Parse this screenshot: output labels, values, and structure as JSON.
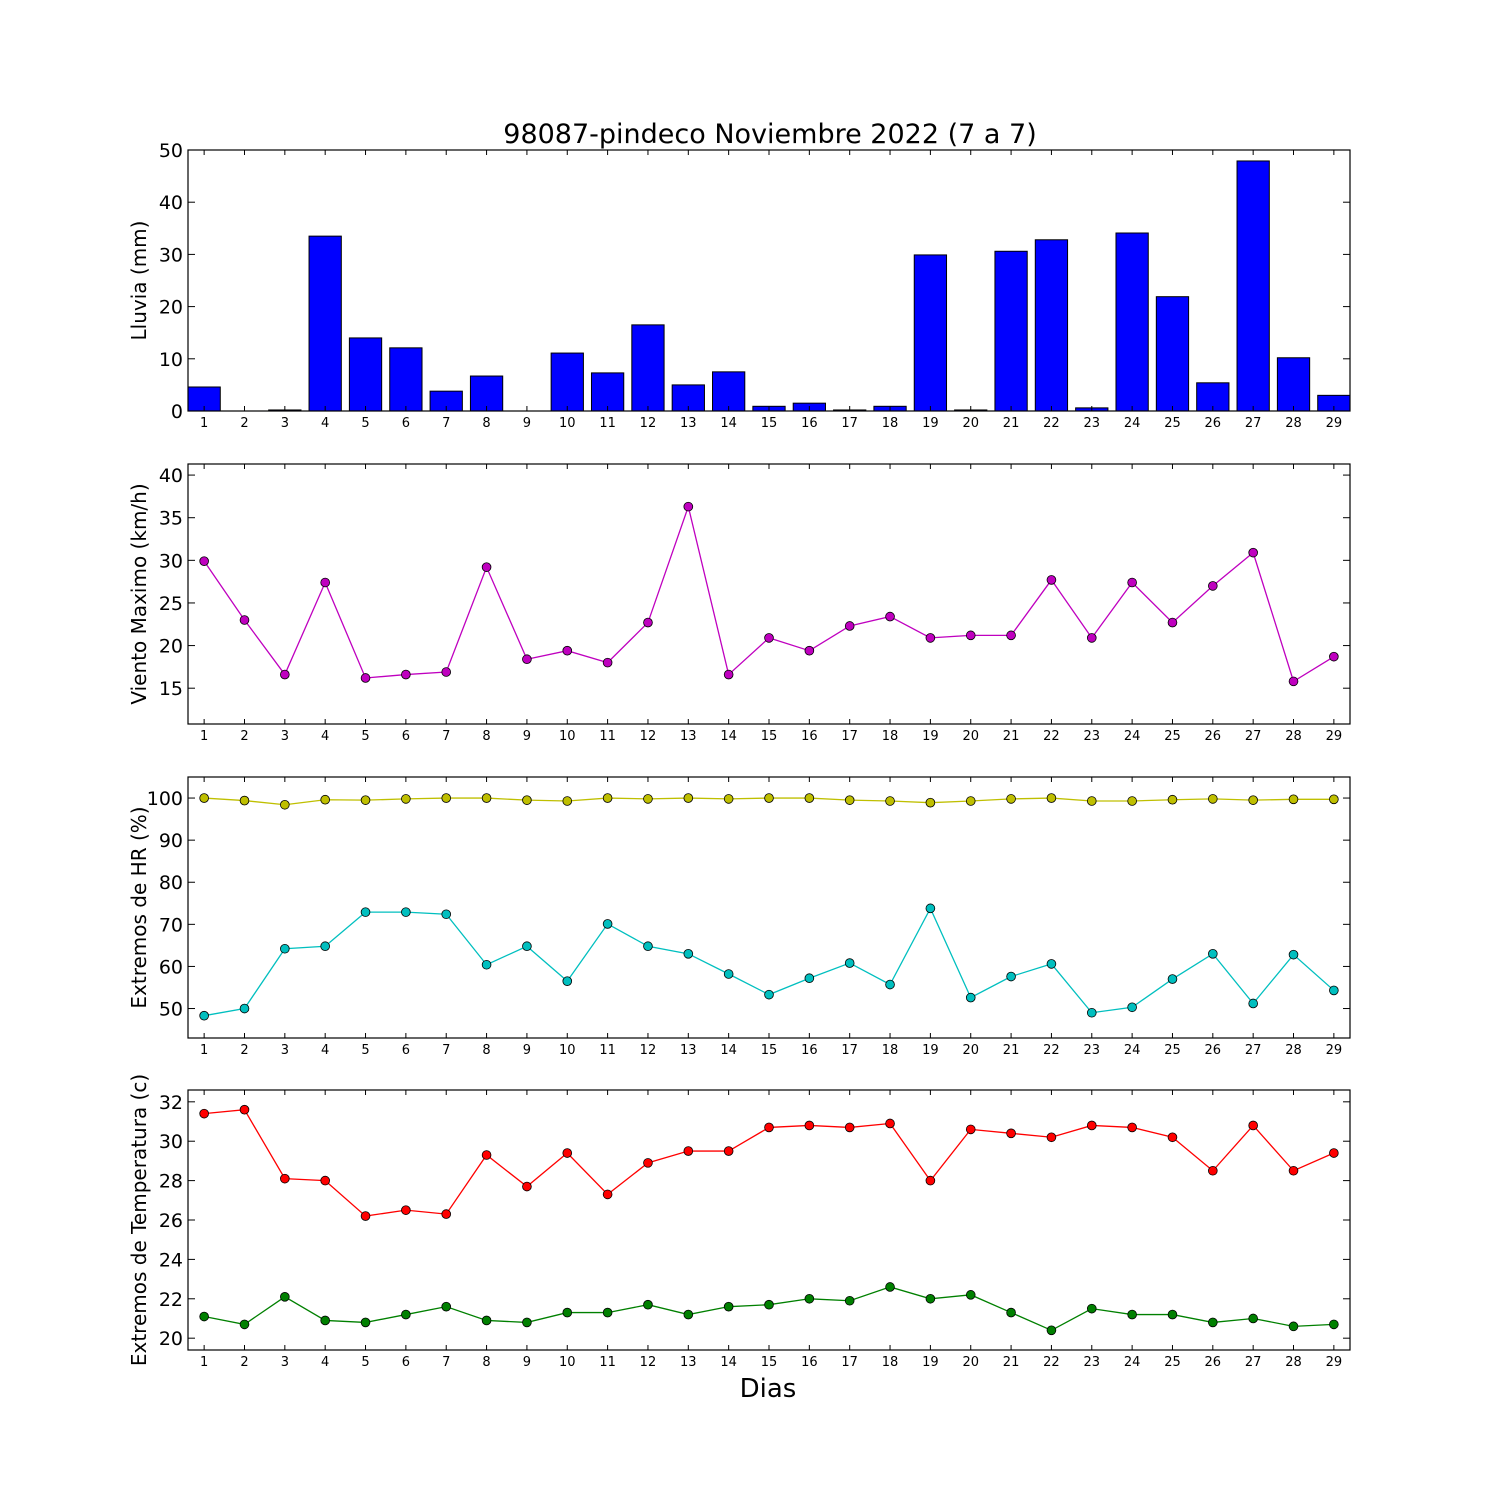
{
  "chart_data": {
    "title": "98087-pindeco Noviembre 2022  (7 a 7)",
    "xlabel": "Dias",
    "categories": [
      "1",
      "2",
      "3",
      "4",
      "5",
      "6",
      "7",
      "8",
      "9",
      "10",
      "11",
      "12",
      "13",
      "14",
      "15",
      "16",
      "17",
      "18",
      "19",
      "20",
      "21",
      "22",
      "23",
      "24",
      "25",
      "26",
      "27",
      "28",
      "29"
    ],
    "panels": [
      {
        "type": "bar",
        "ylabel": "Lluvia (mm)",
        "ylim": [
          0,
          50
        ],
        "yticks": [
          0,
          10,
          20,
          30,
          40,
          50
        ],
        "series": [
          {
            "color": "#0000ff",
            "values": [
              4.6,
              0.0,
              0.2,
              33.5,
              14.0,
              12.1,
              3.8,
              6.7,
              0.0,
              11.1,
              7.3,
              16.5,
              5.0,
              7.5,
              0.9,
              1.5,
              0.2,
              0.9,
              29.9,
              0.2,
              30.6,
              32.8,
              0.6,
              34.1,
              21.9,
              5.4,
              47.9,
              10.2,
              3.0
            ]
          }
        ]
      },
      {
        "type": "line",
        "ylabel": "Viento Maximo (km/h)",
        "ylim": [
          10.8,
          41.3
        ],
        "yticks": [
          15,
          20,
          25,
          30,
          35,
          40
        ],
        "series": [
          {
            "color": "#bf00bf",
            "values": [
              29.9,
              23.0,
              16.6,
              27.4,
              16.2,
              16.6,
              16.9,
              29.2,
              18.4,
              19.4,
              18.0,
              22.7,
              36.3,
              16.6,
              20.9,
              19.4,
              22.3,
              23.4,
              20.9,
              21.2,
              21.2,
              27.7,
              20.9,
              27.4,
              22.7,
              27.0,
              30.9,
              15.8,
              18.7
            ]
          }
        ]
      },
      {
        "type": "line",
        "ylabel": "Extremos de HR (%)",
        "ylim": [
          43.0,
          105.0
        ],
        "yticks": [
          50,
          60,
          70,
          80,
          90,
          100
        ],
        "series": [
          {
            "color": "#bfbf00",
            "values": [
              100.0,
              99.4,
              98.4,
              99.6,
              99.5,
              99.8,
              100.0,
              100.0,
              99.5,
              99.3,
              100.0,
              99.8,
              100.0,
              99.8,
              100.0,
              100.0,
              99.5,
              99.3,
              98.9,
              99.3,
              99.8,
              100.0,
              99.3,
              99.3,
              99.6,
              99.8,
              99.5,
              99.7,
              99.7
            ]
          },
          {
            "color": "#00bfbf",
            "values": [
              48.3,
              50.0,
              64.2,
              64.8,
              72.9,
              72.9,
              72.4,
              60.4,
              64.8,
              56.5,
              70.1,
              64.8,
              63.0,
              58.2,
              53.3,
              57.2,
              60.8,
              55.7,
              73.8,
              52.6,
              57.6,
              60.6,
              49.0,
              50.3,
              57.0,
              63.0,
              51.2,
              62.8,
              54.3
            ]
          }
        ]
      },
      {
        "type": "line",
        "ylabel": "Extremos de Temperatura (c)",
        "ylim": [
          19.4,
          32.6
        ],
        "yticks": [
          20,
          22,
          24,
          26,
          28,
          30,
          32
        ],
        "series": [
          {
            "color": "#ff0000",
            "values": [
              31.4,
              31.6,
              28.1,
              28.0,
              26.2,
              26.5,
              26.3,
              29.3,
              27.7,
              29.4,
              27.3,
              28.9,
              29.5,
              29.5,
              30.7,
              30.8,
              30.7,
              30.9,
              28.0,
              30.6,
              30.4,
              30.2,
              30.8,
              30.7,
              30.2,
              28.5,
              30.8,
              28.5,
              29.4
            ]
          },
          {
            "color": "#008000",
            "values": [
              21.1,
              20.7,
              22.1,
              20.9,
              20.8,
              21.2,
              21.6,
              20.9,
              20.8,
              21.3,
              21.3,
              21.7,
              21.2,
              21.6,
              21.7,
              22.0,
              21.9,
              22.6,
              22.0,
              22.2,
              21.3,
              20.4,
              21.5,
              21.2,
              21.2,
              20.8,
              21.0,
              20.6,
              20.7
            ]
          }
        ]
      }
    ]
  }
}
